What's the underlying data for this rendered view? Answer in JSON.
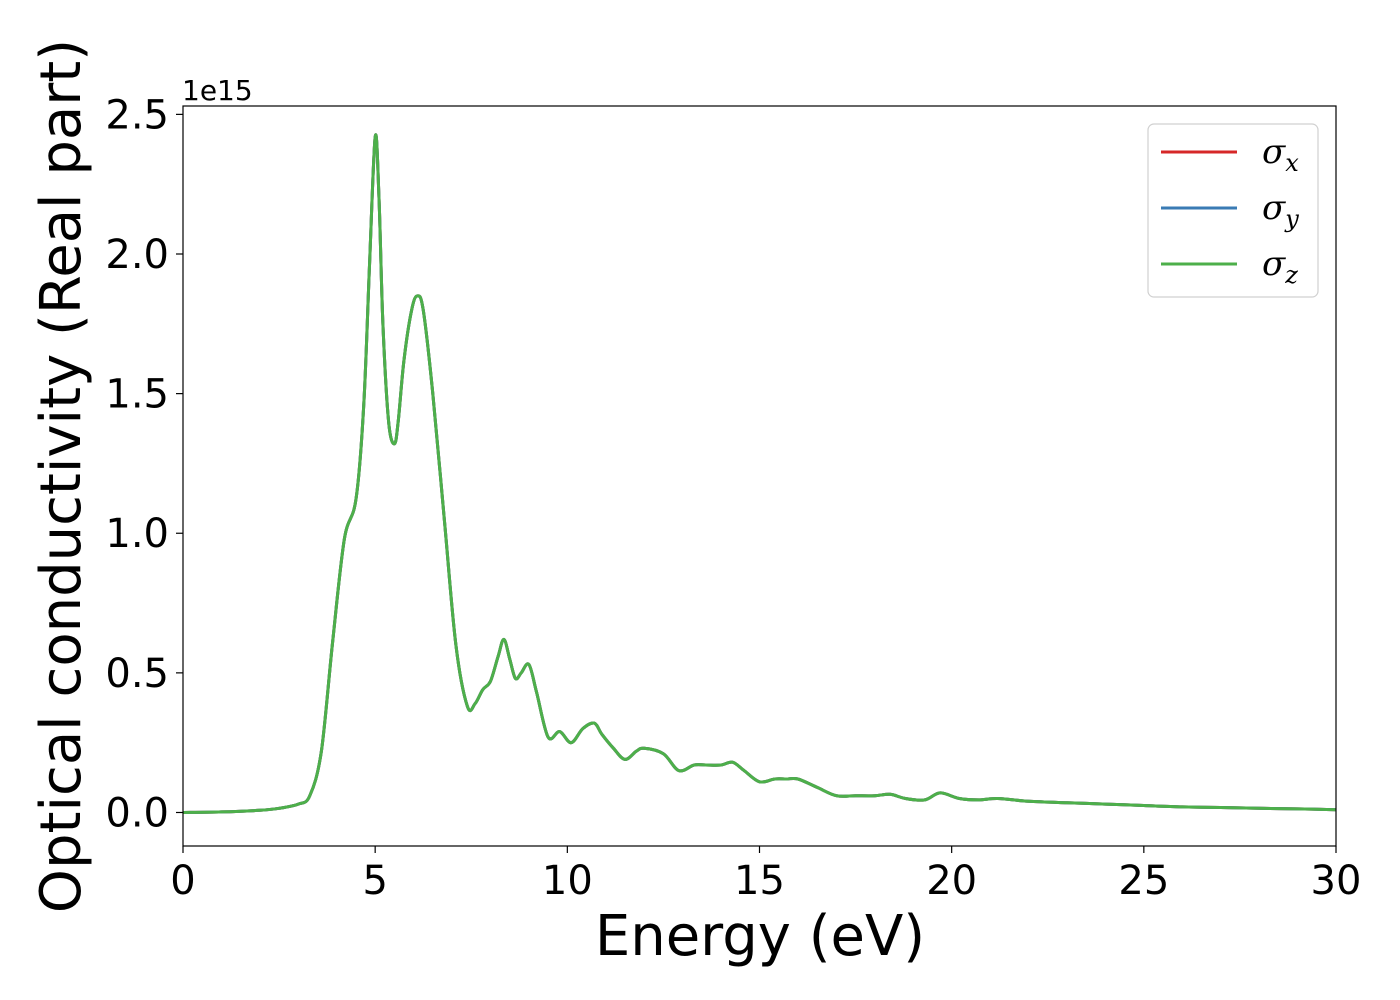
{
  "chart_data": {
    "type": "line",
    "title": "",
    "xlabel": "Energy (eV)",
    "ylabel": "Optical conductivity (Real part)",
    "y_offset_label": "1e15",
    "xlim": [
      0,
      30
    ],
    "ylim": [
      -0.12,
      2.53
    ],
    "xticks": [
      0,
      5,
      10,
      15,
      20,
      25,
      30
    ],
    "yticks": [
      0.0,
      0.5,
      1.0,
      1.5,
      2.0,
      2.5
    ],
    "xtick_labels": [
      "0",
      "5",
      "10",
      "15",
      "20",
      "25",
      "30"
    ],
    "ytick_labels": [
      "0.0",
      "0.5",
      "1.0",
      "1.5",
      "2.0",
      "2.5"
    ],
    "grid": false,
    "legend_position": "top-right",
    "series": [
      {
        "name": "σ",
        "sub": "x",
        "color": "#d62728",
        "points": "shared"
      },
      {
        "name": "σ",
        "sub": "y",
        "color": "#3a7bb4",
        "points": "shared"
      },
      {
        "name": "σ",
        "sub": "z",
        "color": "#4daf4a",
        "points": "shared"
      }
    ],
    "x": [
      0,
      1,
      2,
      2.5,
      3,
      3.3,
      3.6,
      3.9,
      4.2,
      4.5,
      4.7,
      4.85,
      5.0,
      5.1,
      5.2,
      5.35,
      5.5,
      5.6,
      5.75,
      5.95,
      6.1,
      6.25,
      6.5,
      6.8,
      7.1,
      7.4,
      7.6,
      7.8,
      8.0,
      8.2,
      8.35,
      8.5,
      8.65,
      8.8,
      9.0,
      9.2,
      9.5,
      9.8,
      10.1,
      10.4,
      10.7,
      10.9,
      11.2,
      11.5,
      11.8,
      12.0,
      12.5,
      12.9,
      13.3,
      13.6,
      14.0,
      14.3,
      14.6,
      15.0,
      15.4,
      15.7,
      16.0,
      16.5,
      17.0,
      17.5,
      18.0,
      18.4,
      18.8,
      19.3,
      19.7,
      20.2,
      20.7,
      21.2,
      22,
      23,
      24,
      25,
      26,
      27,
      28,
      29,
      30
    ],
    "y": [
      0.0,
      0.002,
      0.008,
      0.015,
      0.03,
      0.06,
      0.22,
      0.62,
      0.98,
      1.12,
      1.45,
      1.95,
      2.42,
      2.2,
      1.75,
      1.4,
      1.32,
      1.4,
      1.62,
      1.8,
      1.85,
      1.8,
      1.5,
      1.05,
      0.6,
      0.38,
      0.39,
      0.44,
      0.47,
      0.56,
      0.62,
      0.55,
      0.48,
      0.5,
      0.53,
      0.43,
      0.27,
      0.29,
      0.25,
      0.3,
      0.32,
      0.28,
      0.23,
      0.19,
      0.22,
      0.23,
      0.21,
      0.15,
      0.17,
      0.17,
      0.17,
      0.18,
      0.15,
      0.11,
      0.12,
      0.12,
      0.12,
      0.09,
      0.06,
      0.06,
      0.06,
      0.065,
      0.05,
      0.045,
      0.07,
      0.05,
      0.045,
      0.05,
      0.04,
      0.035,
      0.03,
      0.025,
      0.02,
      0.018,
      0.015,
      0.013,
      0.01
    ]
  }
}
